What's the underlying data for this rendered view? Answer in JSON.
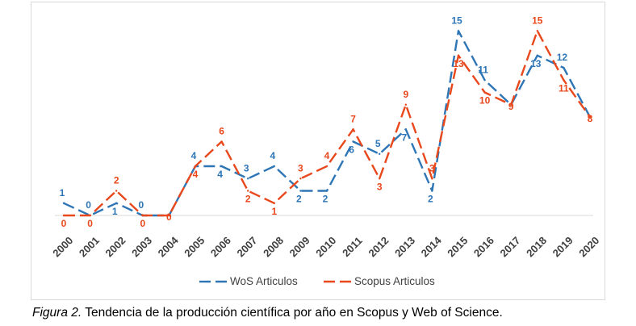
{
  "caption": {
    "label": "Figura 2.",
    "text": " Tendencia de la producción científica por año en Scopus y Web of Science."
  },
  "chart_data": {
    "type": "line",
    "title": "",
    "xlabel": "",
    "ylabel": "",
    "categories": [
      "2000",
      "2001",
      "2002",
      "2003",
      "2004",
      "2005",
      "2006",
      "2007",
      "2008",
      "2009",
      "2010",
      "2011",
      "2012",
      "2013",
      "2014",
      "2015",
      "2016",
      "2017",
      "2018",
      "2019",
      "2020"
    ],
    "series": [
      {
        "name": "WoS Articulos",
        "color": "#2e75b6",
        "dash": "dashed",
        "values": [
          1,
          0,
          1,
          0,
          0,
          4,
          4,
          3,
          4,
          2,
          2,
          6,
          5,
          7,
          2,
          15,
          11,
          9,
          13,
          12,
          8
        ]
      },
      {
        "name": "Scopus Articulos",
        "color": "#e8481c",
        "dash": "dashed",
        "values": [
          0,
          0,
          2,
          0,
          0,
          4,
          6,
          2,
          1,
          3,
          4,
          7,
          3,
          9,
          3,
          13,
          10,
          9,
          15,
          11,
          8
        ]
      }
    ],
    "ylim": [
      0,
      16
    ],
    "grid": false,
    "legend_position": "bottom"
  }
}
